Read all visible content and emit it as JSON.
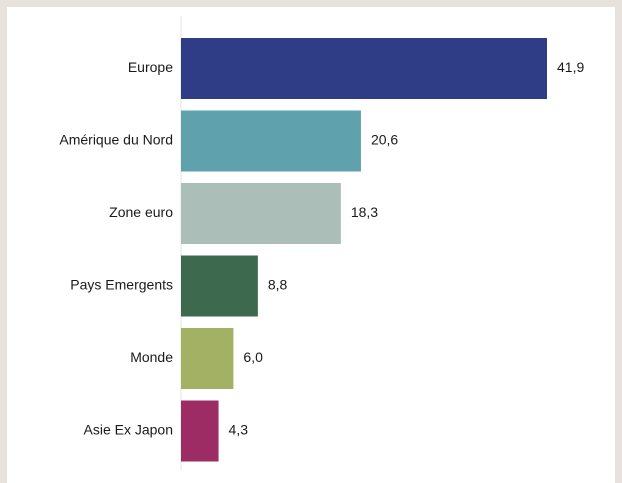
{
  "chart_data": {
    "type": "bar",
    "orientation": "horizontal",
    "categories": [
      "Europe",
      "Amérique du Nord",
      "Zone euro",
      "Pays Emergents",
      "Monde",
      "Asie Ex Japon"
    ],
    "values": [
      41.9,
      20.6,
      18.3,
      8.8,
      6.0,
      4.3
    ],
    "value_labels": [
      "41,9",
      "20,6",
      "18,3",
      "8,8",
      "6,0",
      "4,3"
    ],
    "colors": [
      "#2e3d85",
      "#5fa2ae",
      "#abbfb8",
      "#3d6a4e",
      "#a3b165",
      "#9c2c63"
    ],
    "title": "",
    "xlabel": "",
    "ylabel": "",
    "xlim": [
      0,
      41.9
    ],
    "grid": false,
    "legend": "none"
  }
}
